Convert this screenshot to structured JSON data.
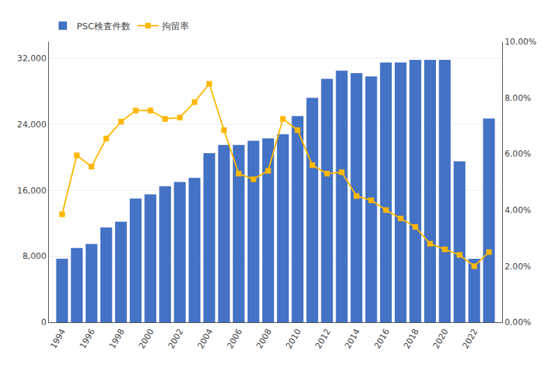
{
  "chart_data": {
    "type": "bar",
    "x": [
      1994,
      1995,
      1996,
      1997,
      1998,
      1999,
      2000,
      2001,
      2002,
      2003,
      2004,
      2005,
      2006,
      2007,
      2008,
      2009,
      2010,
      2011,
      2012,
      2013,
      2014,
      2015,
      2016,
      2017,
      2018,
      2019,
      2020,
      2021,
      2022,
      2023
    ],
    "series": [
      {
        "name": "PSC検査件数",
        "type": "bar",
        "color": "#4472C4",
        "values": [
          7700,
          9000,
          9500,
          11500,
          12200,
          15000,
          15500,
          16500,
          17000,
          17500,
          20500,
          21500,
          21500,
          22000,
          22300,
          22800,
          25000,
          27200,
          29500,
          30500,
          30200,
          29800,
          31500,
          31500,
          31800,
          31800,
          31800,
          19500,
          7700,
          24700
        ]
      },
      {
        "name": "拘留率",
        "type": "line",
        "color": "#FFB700",
        "marker": "square",
        "axis": "y2",
        "values": [
          3.85,
          5.95,
          5.55,
          6.55,
          7.15,
          7.55,
          7.55,
          7.25,
          7.3,
          7.85,
          8.5,
          6.85,
          5.3,
          5.1,
          5.4,
          7.25,
          6.85,
          5.6,
          5.3,
          5.35,
          4.5,
          4.35,
          4.0,
          3.7,
          3.4,
          2.8,
          2.6,
          2.4,
          2.0,
          2.5
        ]
      }
    ],
    "xlim": [
      1993.1,
      2023.9
    ],
    "xticks": [
      1994,
      1996,
      1998,
      2000,
      2002,
      2004,
      2006,
      2008,
      2010,
      2012,
      2014,
      2016,
      2018,
      2020,
      2022
    ],
    "ylim": [
      0,
      34000
    ],
    "yticks": [
      0,
      {
        "value": 8000,
        "label": "8,000"
      },
      {
        "value": 16000,
        "label": "16,000"
      },
      {
        "value": 24000,
        "label": "24,000"
      },
      {
        "value": 32000,
        "label": "32,000"
      }
    ],
    "y2lim": [
      0.0,
      10.0
    ],
    "y2ticks": [
      {
        "value": 0.0,
        "label": "0.00%"
      },
      {
        "value": 2.0,
        "label": "2.00%"
      },
      {
        "value": 4.0,
        "label": "4.00%"
      },
      {
        "value": 6.0,
        "label": "6.00%"
      },
      {
        "value": 8.0,
        "label": "8.00%"
      },
      {
        "value": 10.0,
        "label": "10.00%"
      }
    ],
    "grid": true,
    "legend": "upper left"
  }
}
